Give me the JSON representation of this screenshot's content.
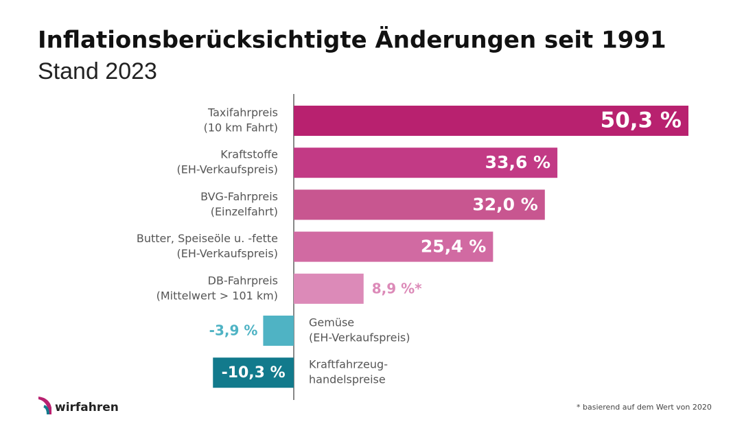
{
  "chart_data": {
    "type": "hbar",
    "title": "Inflationsberücksichtigte Änderungen seit 1991",
    "subtitle": "Stand 2023",
    "categories": [
      [
        "Taxifahrpreis",
        "(10 km Fahrt)"
      ],
      [
        "Kraftstoffe",
        "(EH-Verkaufspreis)"
      ],
      [
        "BVG-Fahrpreis",
        "(Einzelfahrt)"
      ],
      [
        "Butter, Speiseöle u. -fette",
        "(EH-Verkaufspreis)"
      ],
      [
        "DB-Fahrpreis",
        "(Mittelwert > 101 km)"
      ],
      [
        "Gemüse",
        "(EH-Verkaufspreis)"
      ],
      [
        "Kraftfahrzeug-",
        "handelspreise"
      ]
    ],
    "values": [
      50.3,
      33.6,
      32.0,
      25.4,
      8.9,
      -3.9,
      -10.3
    ],
    "value_labels": [
      "50,3 %",
      "33,6 %",
      "32,0 %",
      "25,4 %",
      "8,9 %*",
      "-3,9 %",
      "-10,3 %"
    ],
    "colors": [
      "#b8216f",
      "#c23a85",
      "#c85690",
      "#d16aa2",
      "#dc8ab8",
      "#4fb3c4",
      "#127a8c"
    ],
    "note": "*  basierend auf dem Wert von 2020",
    "logo": "wirfahren"
  }
}
